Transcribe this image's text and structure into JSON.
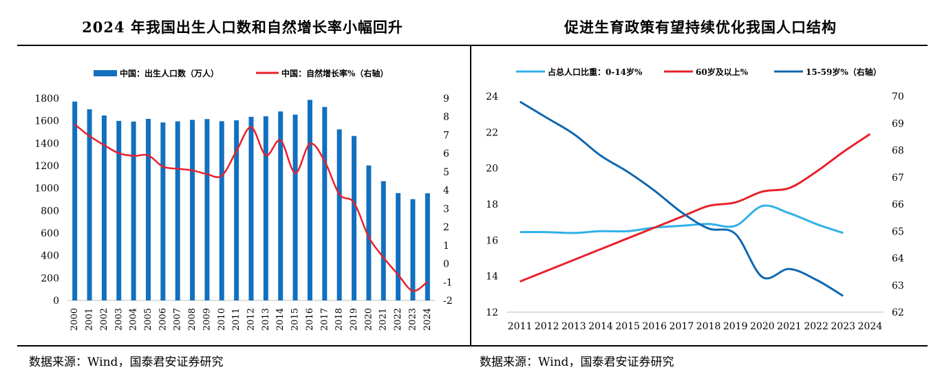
{
  "left_title": "2024 年我国出生人口数和自然增长率小幅回升",
  "right_title": "促进生育政策有望持续优化我国人口结构",
  "left_source": "数据来源：Wind，国泰君安证券研究",
  "right_source": "数据来源：Wind，国泰君安证券研究",
  "colors": {
    "bar": "#1270BF",
    "red_line": "#E8202A",
    "light_blue": "#2FB0E8",
    "dark_blue": "#0F67B0"
  },
  "chart_data": [
    {
      "type": "bar",
      "categories": [
        "2000",
        "2001",
        "2002",
        "2003",
        "2004",
        "2005",
        "2006",
        "2007",
        "2008",
        "2009",
        "2010",
        "2011",
        "2012",
        "2013",
        "2014",
        "2015",
        "2016",
        "2017",
        "2018",
        "2019",
        "2020",
        "2021",
        "2022",
        "2023",
        "2024"
      ],
      "series": [
        {
          "name": "中国：出生人口数（万人）",
          "kind": "bar",
          "axis": "left",
          "values": [
            1771,
            1702,
            1647,
            1599,
            1593,
            1617,
            1585,
            1595,
            1608,
            1615,
            1596,
            1604,
            1635,
            1640,
            1683,
            1655,
            1786,
            1723,
            1523,
            1465,
            1202,
            1062,
            956,
            902,
            954
          ]
        },
        {
          "name": "中国：自然增长率%（右轴）",
          "kind": "line",
          "axis": "right",
          "values": [
            7.58,
            6.95,
            6.45,
            6.01,
            5.87,
            5.89,
            5.28,
            5.17,
            5.08,
            4.87,
            4.79,
            6.13,
            7.43,
            5.9,
            6.71,
            4.93,
            6.53,
            5.58,
            3.78,
            3.32,
            1.45,
            0.34,
            -0.6,
            -1.48,
            -0.99
          ]
        }
      ],
      "y_left": {
        "min": 0,
        "max": 1800,
        "ticks": [
          "0",
          "200",
          "400",
          "600",
          "800",
          "1000",
          "1200",
          "1400",
          "1600",
          "1800"
        ]
      },
      "y_right": {
        "min": -2,
        "max": 9,
        "ticks": [
          "-2",
          "-1",
          "0",
          "1",
          "2",
          "3",
          "4",
          "5",
          "6",
          "7",
          "8",
          "9"
        ]
      },
      "legend": "top-left",
      "grid": false
    },
    {
      "type": "line",
      "x": [
        "2011",
        "2012",
        "2013",
        "2014",
        "2015",
        "2016",
        "2017",
        "2018",
        "2019",
        "2020",
        "2021",
        "2022",
        "2023",
        "2024"
      ],
      "series": [
        {
          "name": "占总人口比重：0-14岁%",
          "axis": "left",
          "values": [
            16.45,
            16.45,
            16.4,
            16.5,
            16.5,
            16.7,
            16.8,
            16.9,
            16.8,
            17.9,
            17.5,
            16.9,
            16.4,
            null
          ]
        },
        {
          "name": "60岁及以上%",
          "axis": "left",
          "values": [
            13.7,
            14.3,
            14.9,
            15.5,
            16.1,
            16.7,
            17.3,
            17.9,
            18.1,
            18.7,
            18.9,
            19.8,
            20.9,
            21.9
          ]
        },
        {
          "name": "15-59岁%（右轴）",
          "axis": "right",
          "values": [
            69.8,
            69.2,
            68.6,
            67.8,
            67.2,
            66.5,
            65.7,
            65.1,
            64.9,
            63.3,
            63.6,
            63.2,
            62.6,
            null
          ]
        }
      ],
      "y_left": {
        "min": 12,
        "max": 24,
        "ticks": [
          "12",
          "14",
          "16",
          "18",
          "20",
          "22",
          "24"
        ]
      },
      "y_right": {
        "min": 62,
        "max": 70,
        "ticks": [
          "62",
          "63",
          "64",
          "65",
          "66",
          "67",
          "68",
          "69",
          "70"
        ]
      },
      "legend": "top",
      "grid": false
    }
  ]
}
